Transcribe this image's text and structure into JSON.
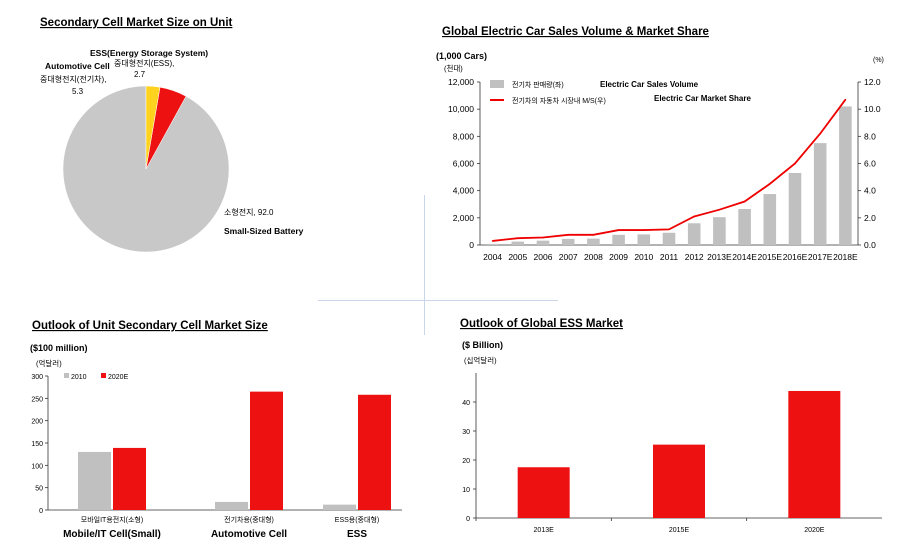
{
  "chart_data": [
    {
      "type": "pie",
      "title": "Secondary Cell Market Size on Unit",
      "slices": [
        {
          "label": "소형전지, 92.0",
          "label_en": "Small-Sized Battery",
          "value": 92.0,
          "color": "#c8c8c8"
        },
        {
          "label": "중대형전지(전기차),",
          "value_label": "5.3",
          "label_en": "Automotive Cell",
          "value": 5.3,
          "color": "#ee1111"
        },
        {
          "label": "중대형전지(ESS),",
          "value_label": "2.7",
          "label_en": "ESS(Energy Storage System)",
          "value": 2.7,
          "color": "#ffd21f"
        }
      ]
    },
    {
      "type": "bar",
      "title": "Global Electric Car Sales Volume & Market Share",
      "y_unit_left": "(1,000 Cars)",
      "y_unit_left_sub": "(천대)",
      "y_unit_right": "(%)",
      "categories": [
        "2004",
        "2005",
        "2006",
        "2007",
        "2008",
        "2009",
        "2010",
        "2011",
        "2012",
        "2013E",
        "2014E",
        "2015E",
        "2016E",
        "2017E",
        "2018E"
      ],
      "ylim": [
        0,
        12000
      ],
      "yticks": [
        "0",
        "2,000",
        "4,000",
        "6,000",
        "8,000",
        "10,000",
        "12,000"
      ],
      "y2lim": [
        0,
        12.0
      ],
      "y2ticks": [
        "0.0",
        "2.0",
        "4.0",
        "6.0",
        "8.0",
        "10.0",
        "12.0"
      ],
      "legend": [
        {
          "label": "전기차 판매량(좌)",
          "label_en": "Electric Car Sales Volume",
          "color": "#c0c0c0"
        },
        {
          "label": "전기차의 자동차 시장내 M/S(우)",
          "label_en": "Electric Car Market Share",
          "color": "#ee0000"
        }
      ],
      "series": [
        {
          "name": "전기차 판매량(좌)",
          "axis": "left",
          "values": [
            80,
            250,
            320,
            450,
            470,
            750,
            780,
            900,
            1600,
            2050,
            2650,
            3750,
            5300,
            7500,
            10200
          ]
        },
        {
          "name": "전기차의 자동차 시장내 M/S(우)",
          "axis": "right",
          "values": [
            0.3,
            0.5,
            0.55,
            0.75,
            0.75,
            1.1,
            1.1,
            1.15,
            2.1,
            2.6,
            3.2,
            4.5,
            6.0,
            8.2,
            10.7
          ]
        }
      ]
    },
    {
      "type": "bar",
      "title": "Outlook of Unit Secondary Cell Market Size",
      "y_unit": "($100 million)",
      "y_unit_sub": "(억달러)",
      "categories": [
        "모바일IT용전지(소형)",
        "전기차용(중대형)",
        "ESS용(중대형)"
      ],
      "categories_en": [
        "Mobile/IT Cell(Small)",
        "Automotive Cell",
        "ESS"
      ],
      "ylim": [
        0,
        300
      ],
      "yticks": [
        "0",
        "50",
        "100",
        "150",
        "200",
        "250",
        "300"
      ],
      "series": [
        {
          "name": "2010",
          "color": "#c0c0c0",
          "values": [
            130,
            18,
            12
          ]
        },
        {
          "name": "2020E",
          "color": "#ee1111",
          "values": [
            139,
            265,
            258
          ]
        }
      ]
    },
    {
      "type": "bar",
      "title": "Outlook of Global ESS Market",
      "y_unit": "($ Billion)",
      "y_unit_sub": "(십억달러)",
      "categories": [
        "2013E",
        "2015E",
        "2020E"
      ],
      "ylim": [
        0,
        50
      ],
      "yticks": [
        "0",
        "10",
        "20",
        "30",
        "40"
      ],
      "series": [
        {
          "values": [
            17.5,
            25.3,
            43.8
          ],
          "color": "#ee1111"
        }
      ]
    }
  ]
}
